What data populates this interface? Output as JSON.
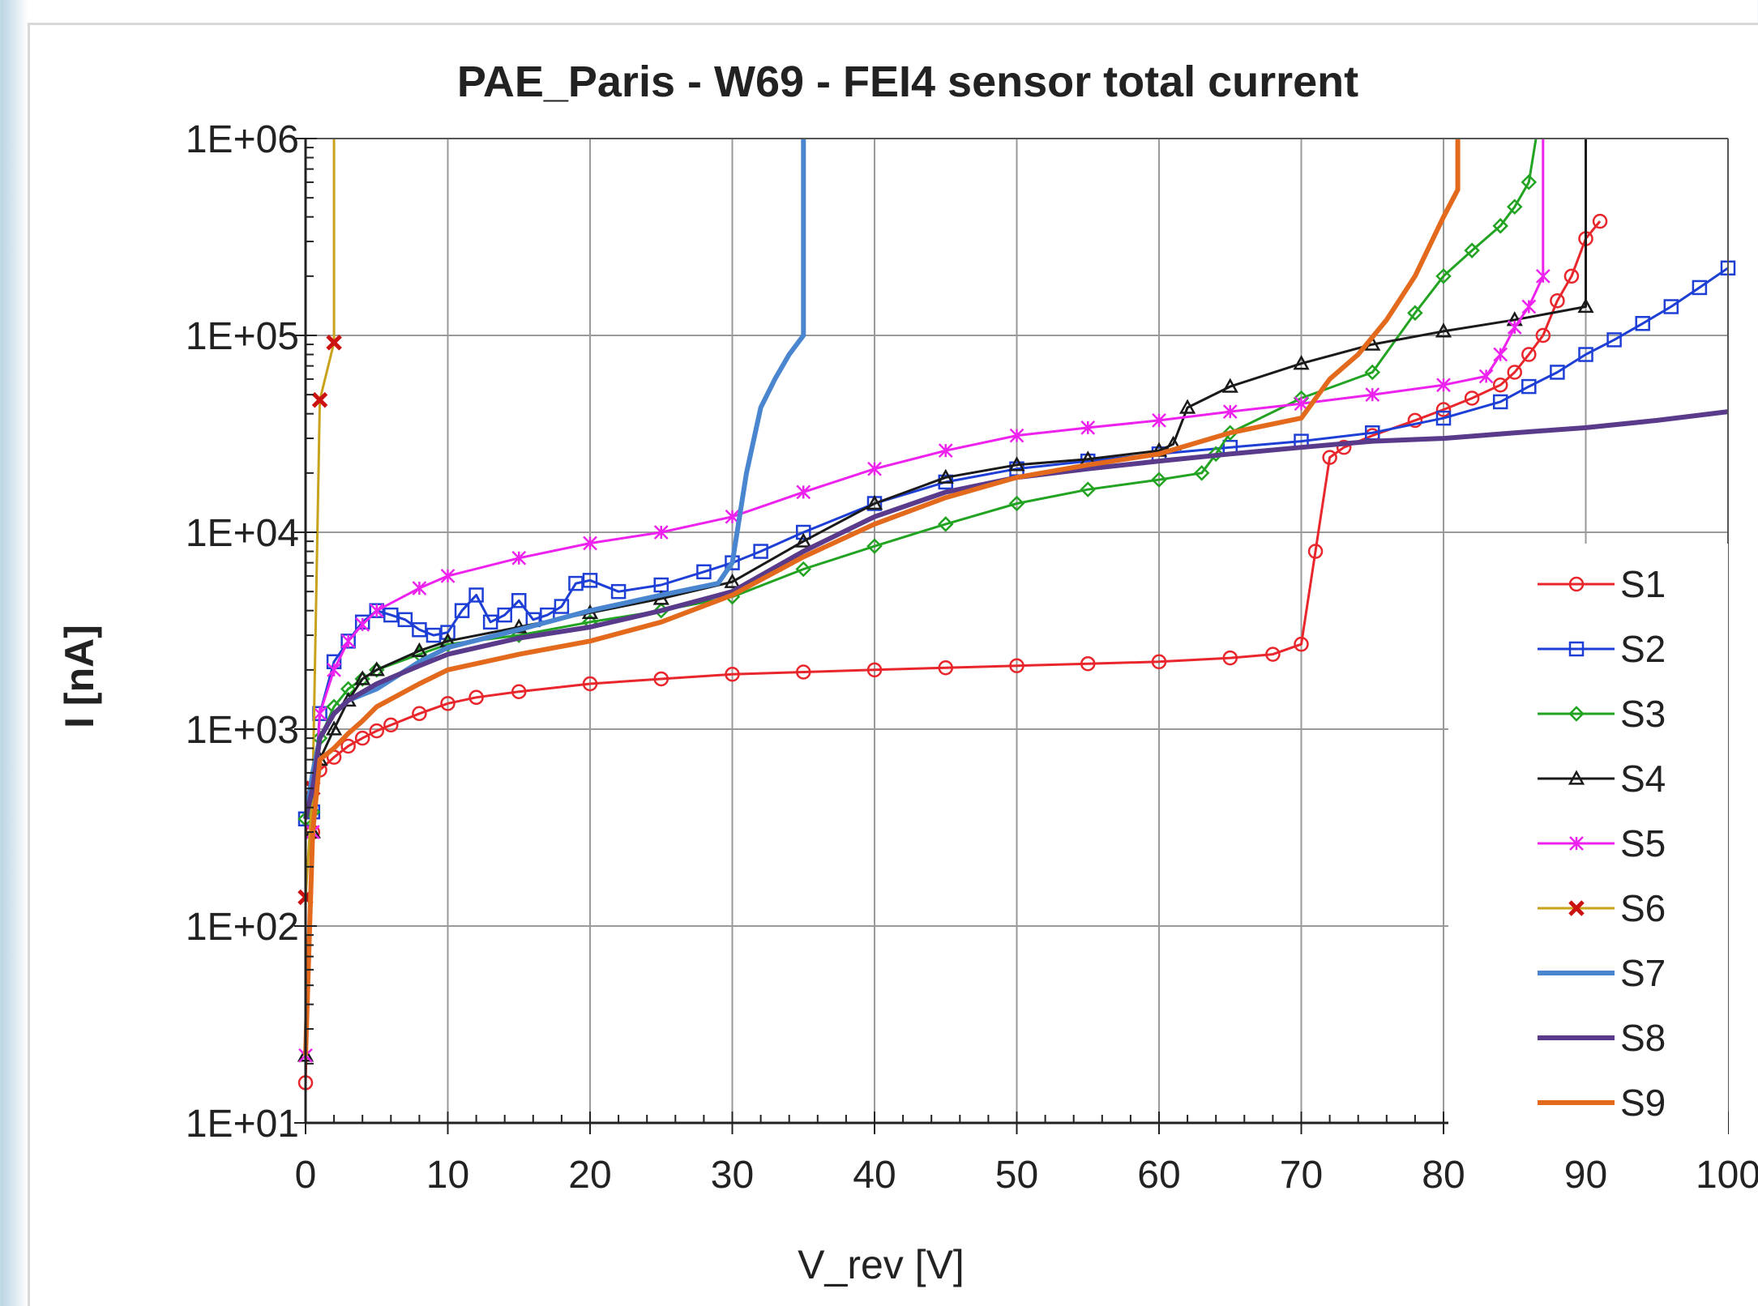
{
  "chart_data": {
    "type": "line",
    "title": "PAE_Paris - W69  -  FEI4 sensor total current",
    "xlabel": "V_rev [V]",
    "ylabel": "I [nA]",
    "xlim": [
      0,
      100
    ],
    "ylim": [
      10,
      1000000
    ],
    "yscale": "log",
    "grid": true,
    "legend_position": "right, inside plot",
    "x_ticks": [
      "0",
      "10",
      "20",
      "30",
      "40",
      "50",
      "60",
      "70",
      "80",
      "90",
      "100"
    ],
    "y_ticks": [
      "1E+01",
      "1E+02",
      "1E+03",
      "1E+04",
      "1E+05",
      "1E+06"
    ],
    "series": [
      {
        "name": "S1",
        "color": "#e8262b",
        "marker": "circle-open",
        "points": [
          [
            0,
            16
          ],
          [
            0.5,
            300
          ],
          [
            1,
            620
          ],
          [
            2,
            720
          ],
          [
            3,
            820
          ],
          [
            4,
            900
          ],
          [
            5,
            980
          ],
          [
            6,
            1050
          ],
          [
            8,
            1200
          ],
          [
            10,
            1350
          ],
          [
            12,
            1450
          ],
          [
            15,
            1550
          ],
          [
            20,
            1700
          ],
          [
            25,
            1800
          ],
          [
            30,
            1900
          ],
          [
            35,
            1950
          ],
          [
            40,
            2000
          ],
          [
            45,
            2050
          ],
          [
            50,
            2100
          ],
          [
            55,
            2150
          ],
          [
            60,
            2200
          ],
          [
            65,
            2300
          ],
          [
            68,
            2400
          ],
          [
            70,
            2700
          ],
          [
            71,
            8000
          ],
          [
            72,
            24000
          ],
          [
            73,
            27000
          ],
          [
            75,
            31000
          ],
          [
            78,
            37000
          ],
          [
            80,
            42000
          ],
          [
            82,
            48000
          ],
          [
            84,
            56000
          ],
          [
            85,
            65000
          ],
          [
            86,
            80000
          ],
          [
            87,
            100000
          ],
          [
            88,
            150000
          ],
          [
            89,
            200000
          ],
          [
            90,
            310000
          ],
          [
            91,
            380000
          ]
        ]
      },
      {
        "name": "S2",
        "color": "#1e3fd6",
        "marker": "square-open",
        "points": [
          [
            0,
            350
          ],
          [
            0.5,
            380
          ],
          [
            1,
            1200
          ],
          [
            2,
            2200
          ],
          [
            3,
            2800
          ],
          [
            4,
            3500
          ],
          [
            5,
            4000
          ],
          [
            6,
            3800
          ],
          [
            7,
            3600
          ],
          [
            8,
            3200
          ],
          [
            9,
            3000
          ],
          [
            10,
            3100
          ],
          [
            11,
            4000
          ],
          [
            12,
            4800
          ],
          [
            13,
            3500
          ],
          [
            14,
            3800
          ],
          [
            15,
            4500
          ],
          [
            16,
            3600
          ],
          [
            17,
            3800
          ],
          [
            18,
            4200
          ],
          [
            19,
            5500
          ],
          [
            20,
            5700
          ],
          [
            22,
            5000
          ],
          [
            25,
            5400
          ],
          [
            28,
            6300
          ],
          [
            30,
            7000
          ],
          [
            32,
            8000
          ],
          [
            35,
            10000
          ],
          [
            40,
            14000
          ],
          [
            45,
            18000
          ],
          [
            50,
            21000
          ],
          [
            55,
            23000
          ],
          [
            60,
            25000
          ],
          [
            65,
            27000
          ],
          [
            70,
            29000
          ],
          [
            75,
            32000
          ],
          [
            80,
            38000
          ],
          [
            84,
            46000
          ],
          [
            86,
            55000
          ],
          [
            88,
            65000
          ],
          [
            90,
            80000
          ],
          [
            92,
            95000
          ],
          [
            94,
            115000
          ],
          [
            96,
            140000
          ],
          [
            98,
            175000
          ],
          [
            100,
            220000
          ]
        ]
      },
      {
        "name": "S3",
        "color": "#22a322",
        "marker": "diamond-open",
        "points": [
          [
            0,
            350
          ],
          [
            0.5,
            380
          ],
          [
            1,
            900
          ],
          [
            2,
            1300
          ],
          [
            3,
            1600
          ],
          [
            4,
            1800
          ],
          [
            5,
            2000
          ],
          [
            8,
            2400
          ],
          [
            10,
            2700
          ],
          [
            15,
            3000
          ],
          [
            20,
            3500
          ],
          [
            25,
            4000
          ],
          [
            30,
            4700
          ],
          [
            35,
            6500
          ],
          [
            40,
            8500
          ],
          [
            45,
            11000
          ],
          [
            50,
            14000
          ],
          [
            55,
            16500
          ],
          [
            60,
            18500
          ],
          [
            63,
            20000
          ],
          [
            64,
            25000
          ],
          [
            65,
            32000
          ],
          [
            70,
            48000
          ],
          [
            75,
            65000
          ],
          [
            78,
            130000
          ],
          [
            80,
            200000
          ],
          [
            82,
            270000
          ],
          [
            84,
            360000
          ],
          [
            85,
            450000
          ],
          [
            86,
            600000
          ],
          [
            86.5,
            1000000
          ]
        ]
      },
      {
        "name": "S4",
        "color": "#1a1a1a",
        "marker": "triangle-open",
        "points": [
          [
            0,
            22
          ],
          [
            0.5,
            300
          ],
          [
            1,
            700
          ],
          [
            2,
            1000
          ],
          [
            3,
            1400
          ],
          [
            4,
            1800
          ],
          [
            5,
            2000
          ],
          [
            8,
            2500
          ],
          [
            10,
            2800
          ],
          [
            15,
            3300
          ],
          [
            20,
            3900
          ],
          [
            25,
            4600
          ],
          [
            30,
            5600
          ],
          [
            35,
            9000
          ],
          [
            40,
            14000
          ],
          [
            45,
            19000
          ],
          [
            50,
            22000
          ],
          [
            55,
            23500
          ],
          [
            60,
            26000
          ],
          [
            61,
            28000
          ],
          [
            62,
            43000
          ],
          [
            65,
            55000
          ],
          [
            70,
            72000
          ],
          [
            75,
            90000
          ],
          [
            80,
            105000
          ],
          [
            85,
            120000
          ],
          [
            90,
            140000
          ],
          [
            90,
            1000000
          ]
        ]
      },
      {
        "name": "S5",
        "color": "#ee22ee",
        "marker": "star",
        "points": [
          [
            0,
            22
          ],
          [
            0.5,
            300
          ],
          [
            1,
            1200
          ],
          [
            2,
            2000
          ],
          [
            3,
            2800
          ],
          [
            4,
            3400
          ],
          [
            5,
            4000
          ],
          [
            8,
            5200
          ],
          [
            10,
            6000
          ],
          [
            15,
            7400
          ],
          [
            20,
            8800
          ],
          [
            25,
            10000
          ],
          [
            30,
            12000
          ],
          [
            35,
            16000
          ],
          [
            40,
            21000
          ],
          [
            45,
            26000
          ],
          [
            50,
            31000
          ],
          [
            55,
            34000
          ],
          [
            60,
            37000
          ],
          [
            65,
            41000
          ],
          [
            70,
            45000
          ],
          [
            75,
            50000
          ],
          [
            80,
            56000
          ],
          [
            83,
            62000
          ],
          [
            84,
            80000
          ],
          [
            85,
            110000
          ],
          [
            86,
            140000
          ],
          [
            87,
            200000
          ],
          [
            87,
            1000000
          ]
        ]
      },
      {
        "name": "S6",
        "color": "#c8a21a",
        "marker": "x-red",
        "points": [
          [
            0,
            140
          ],
          [
            0.5,
            500
          ],
          [
            1,
            47000
          ],
          [
            2,
            92000
          ],
          [
            2,
            1000000
          ]
        ]
      },
      {
        "name": "S7",
        "color": "#4a86cf",
        "marker": "none",
        "points": [
          [
            0,
            350
          ],
          [
            0.5,
            600
          ],
          [
            1,
            900
          ],
          [
            2,
            1200
          ],
          [
            3,
            1400
          ],
          [
            5,
            1600
          ],
          [
            8,
            2200
          ],
          [
            10,
            2600
          ],
          [
            15,
            3200
          ],
          [
            20,
            4000
          ],
          [
            25,
            4800
          ],
          [
            29,
            5500
          ],
          [
            30,
            7000
          ],
          [
            31,
            20000
          ],
          [
            32,
            43000
          ],
          [
            33,
            60000
          ],
          [
            34,
            80000
          ],
          [
            35,
            100000
          ],
          [
            35,
            1000000
          ]
        ]
      },
      {
        "name": "S8",
        "color": "#5a3a8a",
        "marker": "none",
        "points": [
          [
            0,
            350
          ],
          [
            0.5,
            500
          ],
          [
            1,
            900
          ],
          [
            2,
            1200
          ],
          [
            3,
            1400
          ],
          [
            5,
            1700
          ],
          [
            8,
            2100
          ],
          [
            10,
            2400
          ],
          [
            15,
            2900
          ],
          [
            20,
            3300
          ],
          [
            25,
            4000
          ],
          [
            30,
            5000
          ],
          [
            35,
            8000
          ],
          [
            40,
            12000
          ],
          [
            45,
            16000
          ],
          [
            50,
            19000
          ],
          [
            55,
            21000
          ],
          [
            60,
            23000
          ],
          [
            65,
            25000
          ],
          [
            70,
            27000
          ],
          [
            75,
            29000
          ],
          [
            80,
            30000
          ],
          [
            85,
            32000
          ],
          [
            90,
            34000
          ],
          [
            95,
            37000
          ],
          [
            100,
            41000
          ]
        ]
      },
      {
        "name": "S9",
        "color": "#e36a1d",
        "marker": "none",
        "points": [
          [
            0,
            22
          ],
          [
            0.5,
            300
          ],
          [
            1,
            700
          ],
          [
            2,
            800
          ],
          [
            3,
            950
          ],
          [
            4,
            1100
          ],
          [
            5,
            1300
          ],
          [
            8,
            1700
          ],
          [
            10,
            2000
          ],
          [
            15,
            2400
          ],
          [
            20,
            2800
          ],
          [
            25,
            3500
          ],
          [
            30,
            4800
          ],
          [
            35,
            7500
          ],
          [
            40,
            11000
          ],
          [
            45,
            15000
          ],
          [
            50,
            19000
          ],
          [
            55,
            22000
          ],
          [
            60,
            25000
          ],
          [
            65,
            32000
          ],
          [
            70,
            38000
          ],
          [
            72,
            60000
          ],
          [
            74,
            80000
          ],
          [
            76,
            120000
          ],
          [
            78,
            200000
          ],
          [
            80,
            400000
          ],
          [
            81,
            550000
          ],
          [
            81,
            1000000
          ]
        ]
      }
    ]
  }
}
